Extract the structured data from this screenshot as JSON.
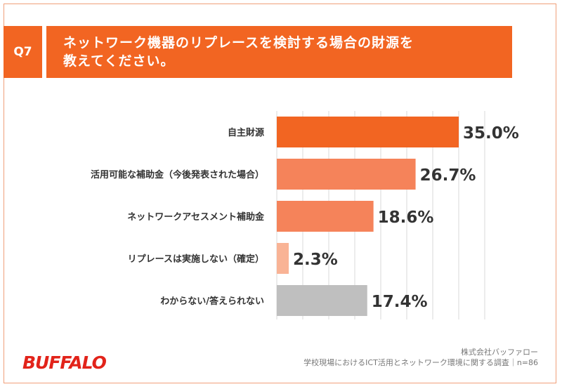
{
  "question": {
    "number": "Q7",
    "title_lines": [
      "ネットワーク機器のリプレースを検討する場合の財源を",
      "教えてください。"
    ]
  },
  "chart_data": {
    "type": "bar",
    "orientation": "horizontal",
    "categories": [
      "自主財源",
      "活用可能な補助金（今後発表された場合）",
      "ネットワークアセスメント補助金",
      "リプレースは実施しない（確定）",
      "わからない/答えられない"
    ],
    "values": [
      35.0,
      26.7,
      18.6,
      2.3,
      17.4
    ],
    "value_labels": [
      "35.0%",
      "26.7%",
      "18.6%",
      "2.3%",
      "17.4%"
    ],
    "bar_colors": [
      "#f26522",
      "#f5835a",
      "#f5835a",
      "#f9b395",
      "#bfbfbf"
    ],
    "xlim": [
      0,
      40
    ],
    "grid": true
  },
  "source": {
    "company": "株式会社バッファロー",
    "survey": "学校現場におけるICT活用とネットワーク環境に関する調査｜n=86"
  },
  "logo": {
    "text": "BUFFALO",
    "color": "#e2231a"
  }
}
